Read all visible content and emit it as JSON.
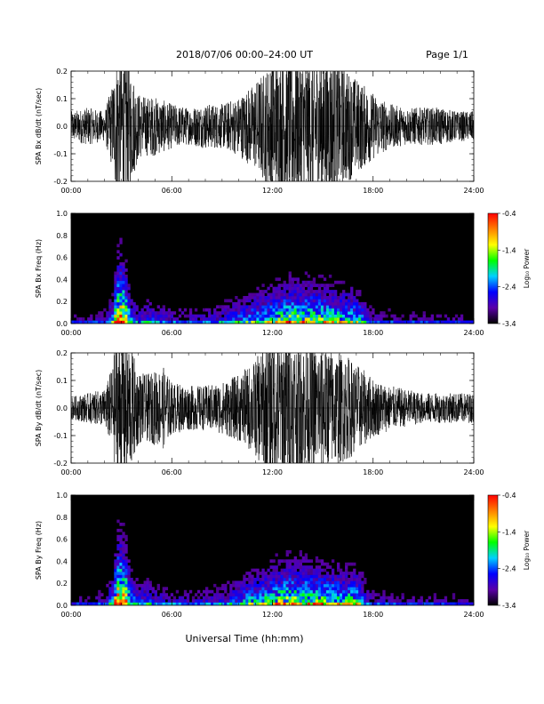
{
  "header": {
    "title": "2018/07/06  00:00–24:00 UT",
    "page": "Page 1/1"
  },
  "chart_data": [
    {
      "type": "line",
      "ylabel": "SPA Bx dB/dt (nT/sec)",
      "x_ticks": [
        "00:00",
        "06:00",
        "12:00",
        "18:00",
        "24:00"
      ],
      "y_ticks": [
        "-0.2",
        "-0.1",
        "0.0",
        "0.1",
        "0.2"
      ],
      "xlim": [
        0,
        24
      ],
      "ylim": [
        -0.2,
        0.2
      ],
      "series": [
        {
          "x": [
            0,
            1,
            2,
            2.5,
            2.7,
            3,
            3.3,
            3.6,
            4,
            4.5,
            5,
            5.5,
            6,
            7,
            8,
            9,
            10,
            11,
            11.5,
            12,
            12.5,
            13,
            13.5,
            14,
            14.5,
            15,
            15.5,
            16,
            16.5,
            17,
            18,
            19,
            20,
            21,
            22,
            23,
            24
          ],
          "amplitude": [
            0.04,
            0.05,
            0.04,
            0.12,
            0.2,
            0.2,
            0.2,
            0.15,
            0.09,
            0.08,
            0.08,
            0.07,
            0.06,
            0.05,
            0.06,
            0.06,
            0.08,
            0.12,
            0.15,
            0.18,
            0.2,
            0.2,
            0.2,
            0.2,
            0.19,
            0.2,
            0.19,
            0.17,
            0.15,
            0.13,
            0.09,
            0.06,
            0.05,
            0.05,
            0.05,
            0.04,
            0.04
          ]
        }
      ]
    },
    {
      "type": "heatmap",
      "ylabel": "SPA Bx Freq (Hz)",
      "x_ticks": [
        "00:00",
        "06:00",
        "12:00",
        "18:00",
        "24:00"
      ],
      "y_ticks": [
        "0.0",
        "0.2",
        "0.4",
        "0.6",
        "0.8",
        "1.0"
      ],
      "xlim": [
        0,
        24
      ],
      "ylim": [
        0,
        1.0
      ],
      "colorbar": {
        "label": "Log₁₀ Power",
        "ticks": [
          "-0.4",
          "-1.4",
          "-2.4",
          "-3.4"
        ],
        "range": [
          -3.4,
          -0.4
        ],
        "colors": [
          "#000000",
          "#5a00a8",
          "#0000ff",
          "#00d0ff",
          "#00ff00",
          "#ffff00",
          "#ff8000",
          "#ff0000"
        ]
      },
      "activity": {
        "time": [
          0,
          1,
          2,
          2.5,
          2.7,
          3,
          3.3,
          3.6,
          4,
          4.5,
          5,
          6,
          7,
          8,
          9,
          10,
          11,
          12,
          12.5,
          13,
          13.5,
          14,
          15,
          16,
          17,
          17.3,
          17.6,
          18,
          19,
          20,
          21,
          22,
          23,
          24
        ],
        "level": [
          0.15,
          0.15,
          0.2,
          0.45,
          0.9,
          1.0,
          0.8,
          0.45,
          0.3,
          0.35,
          0.3,
          0.25,
          0.22,
          0.25,
          0.3,
          0.4,
          0.5,
          0.6,
          0.65,
          0.7,
          0.7,
          0.68,
          0.65,
          0.6,
          0.55,
          0.5,
          0.3,
          0.22,
          0.2,
          0.18,
          0.18,
          0.17,
          0.16,
          0.15
        ]
      }
    },
    {
      "type": "line",
      "ylabel": "SPA By dB/dt (nT/sec)",
      "x_ticks": [
        "00:00",
        "06:00",
        "12:00",
        "18:00",
        "24:00"
      ],
      "y_ticks": [
        "-0.2",
        "-0.1",
        "0.0",
        "0.1",
        "0.2"
      ],
      "xlim": [
        0,
        24
      ],
      "ylim": [
        -0.2,
        0.2
      ],
      "series": [
        {
          "x": [
            0,
            1,
            2,
            2.5,
            2.7,
            3,
            3.3,
            3.6,
            4,
            4.5,
            5,
            5.5,
            6,
            7,
            8,
            9,
            10,
            11,
            11.5,
            12,
            12.5,
            13,
            13.5,
            14,
            14.5,
            15,
            15.5,
            16,
            16.5,
            17,
            18,
            19,
            20,
            21,
            22,
            23,
            24
          ],
          "amplitude": [
            0.03,
            0.04,
            0.05,
            0.12,
            0.2,
            0.2,
            0.2,
            0.16,
            0.1,
            0.09,
            0.1,
            0.11,
            0.07,
            0.06,
            0.06,
            0.07,
            0.09,
            0.13,
            0.17,
            0.2,
            0.2,
            0.2,
            0.19,
            0.18,
            0.17,
            0.17,
            0.16,
            0.15,
            0.14,
            0.12,
            0.08,
            0.06,
            0.05,
            0.04,
            0.04,
            0.04,
            0.04
          ]
        }
      ]
    },
    {
      "type": "heatmap",
      "ylabel": "SPA By Freq (Hz)",
      "x_ticks": [
        "00:00",
        "06:00",
        "12:00",
        "18:00",
        "24:00"
      ],
      "y_ticks": [
        "0.0",
        "0.2",
        "0.4",
        "0.6",
        "0.8",
        "1.0"
      ],
      "xlim": [
        0,
        24
      ],
      "ylim": [
        0,
        1.0
      ],
      "colorbar": {
        "label": "Log₁₀ Power",
        "ticks": [
          "-0.4",
          "-1.4",
          "-2.4",
          "-3.4"
        ],
        "range": [
          -3.4,
          -0.4
        ],
        "colors": [
          "#000000",
          "#5a00a8",
          "#0000ff",
          "#00d0ff",
          "#00ff00",
          "#ffff00",
          "#ff8000",
          "#ff0000"
        ]
      },
      "activity": {
        "time": [
          0,
          1,
          2,
          2.5,
          2.7,
          3,
          3.3,
          3.6,
          4,
          4.5,
          5,
          6,
          7,
          8,
          9,
          10,
          11,
          12,
          12.5,
          13,
          13.5,
          14,
          15,
          16,
          17,
          17.3,
          17.6,
          18,
          19,
          20,
          21,
          22,
          23,
          24
        ],
        "level": [
          0.15,
          0.17,
          0.22,
          0.5,
          0.95,
          1.0,
          0.85,
          0.5,
          0.35,
          0.4,
          0.3,
          0.25,
          0.22,
          0.25,
          0.3,
          0.42,
          0.55,
          0.65,
          0.7,
          0.72,
          0.72,
          0.7,
          0.66,
          0.62,
          0.58,
          0.55,
          0.3,
          0.22,
          0.2,
          0.18,
          0.18,
          0.17,
          0.16,
          0.15
        ]
      }
    }
  ],
  "footer": {
    "xlabel": "Universal Time (hh:mm)"
  }
}
